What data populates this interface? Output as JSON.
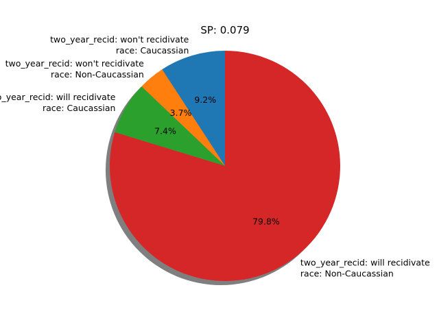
{
  "chart_data": {
    "type": "pie",
    "title": "SP: 0.079",
    "slices": [
      {
        "line1": "two_year_recid: won't recidivate",
        "line2": "race: Caucassian",
        "value": 9.2,
        "pct_label": "9.2%",
        "color": "#1f77b4"
      },
      {
        "line1": "two_year_recid: won't recidivate",
        "line2": "race: Non-Caucassian",
        "value": 3.7,
        "pct_label": "3.7%",
        "color": "#ff7f0e"
      },
      {
        "line1": "two_year_recid: will recidivate",
        "line2": "race: Caucassian",
        "value": 7.4,
        "pct_label": "7.4%",
        "color": "#2ca02c"
      },
      {
        "line1": "two_year_recid: will recidivate",
        "line2": "race: Non-Caucassian",
        "value": 79.8,
        "pct_label": "79.8%",
        "color": "#d62728"
      }
    ],
    "start_angle": "90 degrees (top), counter-clockwise",
    "shadow": true
  }
}
